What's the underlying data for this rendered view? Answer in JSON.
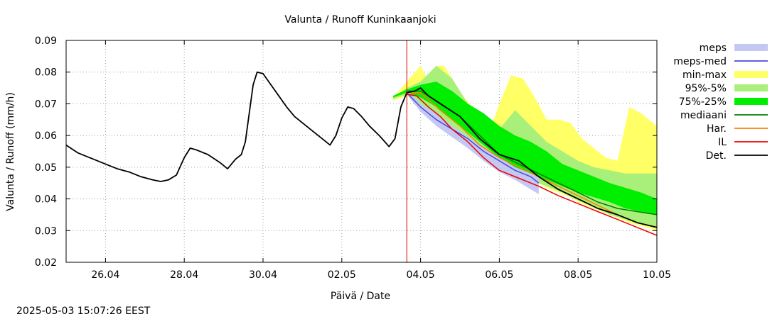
{
  "chart_data": {
    "type": "line",
    "title": "Valunta / Runoff  Kuninkaanjoki",
    "xlabel": "Päivä / Date",
    "ylabel": "Valunta / Runoff (mm/h)",
    "timestamp": "2025-05-03 15:07:26 EEST",
    "xlim": [
      0,
      15
    ],
    "ylim": [
      0.02,
      0.09
    ],
    "x_ticks": [
      {
        "x": 1,
        "label": "26.04"
      },
      {
        "x": 3,
        "label": "28.04"
      },
      {
        "x": 5,
        "label": "30.04"
      },
      {
        "x": 7,
        "label": "02.05"
      },
      {
        "x": 9,
        "label": "04.05"
      },
      {
        "x": 11,
        "label": "06.05"
      },
      {
        "x": 13,
        "label": "08.05"
      },
      {
        "x": 15,
        "label": "10.05"
      }
    ],
    "y_ticks": [
      0.02,
      0.03,
      0.04,
      0.05,
      0.06,
      0.07,
      0.08,
      0.09
    ],
    "grid": true,
    "legend_position": "right",
    "forecast_start_x": 8.65,
    "series": [
      {
        "name": "Det.",
        "kind": "line",
        "color": "#000000",
        "points": [
          [
            0,
            0.057
          ],
          [
            0.3,
            0.0545
          ],
          [
            0.7,
            0.0525
          ],
          [
            1,
            0.051
          ],
          [
            1.3,
            0.0495
          ],
          [
            1.6,
            0.0485
          ],
          [
            1.9,
            0.047
          ],
          [
            2.2,
            0.046
          ],
          [
            2.4,
            0.0455
          ],
          [
            2.6,
            0.046
          ],
          [
            2.8,
            0.0475
          ],
          [
            3,
            0.053
          ],
          [
            3.15,
            0.056
          ],
          [
            3.3,
            0.0555
          ],
          [
            3.6,
            0.054
          ],
          [
            3.9,
            0.0515
          ],
          [
            4.1,
            0.0495
          ],
          [
            4.3,
            0.0525
          ],
          [
            4.45,
            0.054
          ],
          [
            4.55,
            0.058
          ],
          [
            4.65,
            0.067
          ],
          [
            4.75,
            0.076
          ],
          [
            4.85,
            0.08
          ],
          [
            5,
            0.0795
          ],
          [
            5.2,
            0.076
          ],
          [
            5.4,
            0.0725
          ],
          [
            5.6,
            0.069
          ],
          [
            5.8,
            0.066
          ],
          [
            6,
            0.064
          ],
          [
            6.3,
            0.061
          ],
          [
            6.55,
            0.0585
          ],
          [
            6.7,
            0.057
          ],
          [
            6.85,
            0.06
          ],
          [
            7,
            0.0655
          ],
          [
            7.15,
            0.069
          ],
          [
            7.3,
            0.0685
          ],
          [
            7.5,
            0.066
          ],
          [
            7.7,
            0.063
          ],
          [
            7.95,
            0.06
          ],
          [
            8.2,
            0.0565
          ],
          [
            8.35,
            0.059
          ],
          [
            8.5,
            0.069
          ],
          [
            8.65,
            0.0735
          ],
          [
            8.85,
            0.074
          ],
          [
            9.0,
            0.075
          ],
          [
            9.2,
            0.0725
          ],
          [
            9.5,
            0.07
          ],
          [
            10.0,
            0.066
          ],
          [
            10.5,
            0.059
          ],
          [
            11.0,
            0.054
          ],
          [
            11.5,
            0.052
          ],
          [
            12.0,
            0.047
          ],
          [
            12.5,
            0.043
          ],
          [
            13.0,
            0.04
          ],
          [
            13.5,
            0.037
          ],
          [
            14.0,
            0.035
          ],
          [
            14.5,
            0.0325
          ],
          [
            15,
            0.031
          ]
        ]
      },
      {
        "name": "meps-med",
        "kind": "line",
        "color": "#4a4ad8",
        "points": [
          [
            8.65,
            0.0735
          ],
          [
            9.0,
            0.069
          ],
          [
            9.4,
            0.065
          ],
          [
            9.8,
            0.062
          ],
          [
            10.2,
            0.059
          ],
          [
            10.6,
            0.055
          ],
          [
            11.0,
            0.052
          ],
          [
            11.4,
            0.049
          ],
          [
            11.8,
            0.047
          ],
          [
            12.0,
            0.045
          ]
        ]
      },
      {
        "name": "mediaani",
        "kind": "line",
        "color": "#008000",
        "points": [
          [
            8.65,
            0.074
          ],
          [
            9.0,
            0.074
          ],
          [
            9.4,
            0.071
          ],
          [
            10.0,
            0.066
          ],
          [
            10.5,
            0.06
          ],
          [
            11.0,
            0.054
          ],
          [
            11.5,
            0.051
          ],
          [
            12.0,
            0.048
          ],
          [
            12.5,
            0.045
          ],
          [
            13.0,
            0.042
          ],
          [
            13.5,
            0.039
          ],
          [
            14.0,
            0.037
          ],
          [
            14.5,
            0.036
          ],
          [
            15,
            0.035
          ]
        ]
      },
      {
        "name": "Har.",
        "kind": "line",
        "color": "#ff8000",
        "points": [
          [
            8.65,
            0.0735
          ],
          [
            9.0,
            0.0735
          ],
          [
            9.5,
            0.068
          ],
          [
            10.0,
            0.063
          ],
          [
            10.5,
            0.057
          ],
          [
            11.0,
            0.053
          ],
          [
            11.5,
            0.05
          ],
          [
            12.0,
            0.047
          ],
          [
            12.5,
            0.044
          ],
          [
            13.0,
            0.041
          ],
          [
            13.5,
            0.038
          ],
          [
            14.0,
            0.035
          ],
          [
            14.5,
            0.0325
          ],
          [
            15,
            0.031
          ]
        ]
      },
      {
        "name": "IL",
        "kind": "line",
        "color": "#ee0000",
        "points": [
          [
            8.65,
            0.073
          ],
          [
            8.9,
            0.0725
          ],
          [
            9.2,
            0.069
          ],
          [
            9.5,
            0.066
          ],
          [
            9.8,
            0.062
          ],
          [
            10.2,
            0.058
          ],
          [
            10.6,
            0.053
          ],
          [
            11.0,
            0.049
          ],
          [
            11.5,
            0.0465
          ],
          [
            12.0,
            0.044
          ],
          [
            12.5,
            0.041
          ],
          [
            13.0,
            0.0385
          ],
          [
            13.5,
            0.036
          ],
          [
            14.0,
            0.0335
          ],
          [
            14.5,
            0.031
          ],
          [
            15,
            0.0285
          ]
        ]
      }
    ],
    "bands": [
      {
        "name": "min-max",
        "kind": "band",
        "color": "#ffff66",
        "x": [
          8.3,
          8.65,
          9.0,
          9.2,
          9.4,
          9.6,
          9.8,
          10.0,
          10.2,
          10.5,
          10.8,
          11.0,
          11.3,
          11.6,
          11.9,
          12.2,
          12.5,
          12.8,
          13.1,
          13.4,
          13.7,
          14.0,
          14.3,
          14.6,
          15
        ],
        "lower": [
          0.071,
          0.0725,
          0.069,
          0.0665,
          0.064,
          0.0615,
          0.0595,
          0.058,
          0.056,
          0.0545,
          0.052,
          0.05,
          0.049,
          0.047,
          0.0455,
          0.0435,
          0.042,
          0.0405,
          0.0385,
          0.037,
          0.0355,
          0.034,
          0.0325,
          0.0315,
          0.03
        ],
        "upper": [
          0.072,
          0.077,
          0.082,
          0.077,
          0.082,
          0.082,
          0.078,
          0.074,
          0.0705,
          0.067,
          0.063,
          0.07,
          0.079,
          0.078,
          0.072,
          0.065,
          0.065,
          0.064,
          0.059,
          0.056,
          0.053,
          0.052,
          0.069,
          0.067,
          0.063
        ]
      },
      {
        "name": "95%-5%",
        "kind": "band",
        "color": "#a8f07a",
        "x": [
          8.3,
          8.65,
          9.0,
          9.4,
          9.8,
          10.2,
          10.6,
          11.0,
          11.4,
          11.8,
          12.2,
          12.6,
          13.0,
          13.4,
          13.8,
          14.2,
          14.6,
          15
        ],
        "lower": [
          0.0715,
          0.073,
          0.07,
          0.066,
          0.062,
          0.059,
          0.0555,
          0.052,
          0.049,
          0.046,
          0.044,
          0.042,
          0.0395,
          0.0375,
          0.035,
          0.0335,
          0.032,
          0.031
        ],
        "upper": [
          0.072,
          0.075,
          0.077,
          0.082,
          0.078,
          0.07,
          0.064,
          0.062,
          0.068,
          0.063,
          0.058,
          0.055,
          0.052,
          0.05,
          0.049,
          0.048,
          0.048,
          0.048
        ]
      },
      {
        "name": "75%-25%",
        "kind": "band",
        "color": "#00ee00",
        "x": [
          8.3,
          8.65,
          9.0,
          9.4,
          9.8,
          10.2,
          10.6,
          11.0,
          11.4,
          11.8,
          12.2,
          12.6,
          13.0,
          13.4,
          13.8,
          14.2,
          14.6,
          15
        ],
        "lower": [
          0.072,
          0.0735,
          0.072,
          0.069,
          0.065,
          0.061,
          0.057,
          0.053,
          0.05,
          0.048,
          0.046,
          0.044,
          0.042,
          0.0405,
          0.039,
          0.037,
          0.036,
          0.035
        ],
        "upper": [
          0.0725,
          0.0745,
          0.076,
          0.077,
          0.074,
          0.07,
          0.067,
          0.063,
          0.06,
          0.058,
          0.055,
          0.051,
          0.049,
          0.047,
          0.045,
          0.0435,
          0.042,
          0.04
        ]
      },
      {
        "name": "meps",
        "kind": "band",
        "color": "#c4c8f4",
        "x": [
          8.65,
          9.0,
          9.4,
          9.8,
          10.2,
          10.6,
          11.0,
          11.4,
          11.8,
          12.0
        ],
        "lower": [
          0.073,
          0.0675,
          0.063,
          0.0595,
          0.056,
          0.052,
          0.0485,
          0.046,
          0.043,
          0.0415
        ],
        "upper": [
          0.0745,
          0.07,
          0.067,
          0.063,
          0.0595,
          0.056,
          0.053,
          0.05,
          0.048,
          0.047
        ]
      }
    ],
    "legend": [
      {
        "name": "meps",
        "kind": "band",
        "color": "#c4c8f4"
      },
      {
        "name": "meps-med",
        "kind": "line",
        "color": "#4a4ad8"
      },
      {
        "name": "min-max",
        "kind": "band",
        "color": "#ffff66"
      },
      {
        "name": "95%-5%",
        "kind": "band",
        "color": "#a8f07a"
      },
      {
        "name": "75%-25%",
        "kind": "band",
        "color": "#00ee00"
      },
      {
        "name": "mediaani",
        "kind": "line",
        "color": "#008000"
      },
      {
        "name": "Har.",
        "kind": "line",
        "color": "#ff8000"
      },
      {
        "name": "IL",
        "kind": "line",
        "color": "#ee0000"
      },
      {
        "name": "Det.",
        "kind": "line",
        "color": "#000000"
      }
    ]
  }
}
